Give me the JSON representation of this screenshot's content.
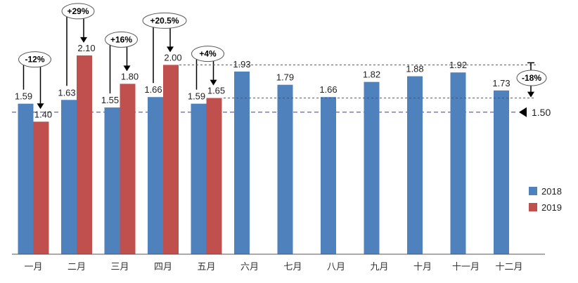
{
  "chart_data": {
    "type": "bar",
    "categories": [
      "一月",
      "二月",
      "三月",
      "四月",
      "五月",
      "六月",
      "七月",
      "八月",
      "九月",
      "十月",
      "十一月",
      "十二月"
    ],
    "series": [
      {
        "name": "2018",
        "color": "#4f81bd",
        "values": [
          1.59,
          1.63,
          1.55,
          1.66,
          1.59,
          1.93,
          1.79,
          1.66,
          1.82,
          1.88,
          1.92,
          1.73
        ]
      },
      {
        "name": "2019",
        "color": "#c0504d",
        "values": [
          1.4,
          2.1,
          1.8,
          2.0,
          1.65,
          null,
          null,
          null,
          null,
          null,
          null,
          null
        ]
      }
    ],
    "data_labels": {
      "2018": [
        "1.59",
        "1.63",
        "1.55",
        "1.66",
        "1.59",
        "1.93",
        "1.79",
        "1.66",
        "1.82",
        "1.88",
        "1.92",
        "1.73"
      ],
      "2019": [
        "1.40",
        "2.10",
        "1.80",
        "2.00",
        "1.65"
      ]
    },
    "annotations": [
      "-12%",
      "+29%",
      "+16%",
      "+20.5%",
      "+4%"
    ],
    "summary_annotation": "-18%",
    "reference_line": {
      "value": 1.5,
      "label": "1.50",
      "color": "#3333dd"
    },
    "ylim": [
      0,
      2.2
    ],
    "grid": false,
    "legend": "right"
  }
}
